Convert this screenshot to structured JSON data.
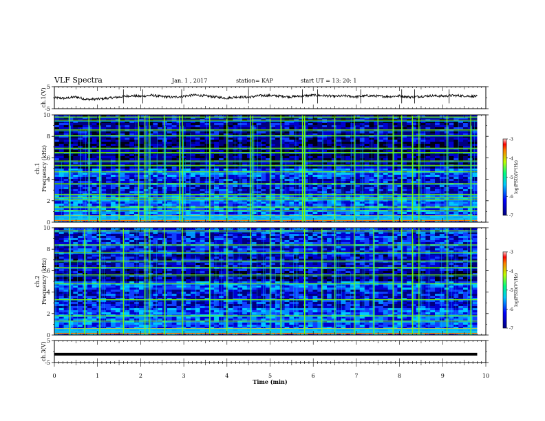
{
  "header": {
    "title": "VLF Spectra",
    "date": "Jan. 1 , 2017",
    "station": "station= KAP",
    "start": "start UT = 13: 20: 1"
  },
  "colors": {
    "spec_low": "#00007f",
    "spec_mid": "#00c8ff",
    "spec_high": "#7fff00",
    "spec_peak": "#ff0000",
    "trace": "#000000"
  },
  "chart_data": [
    {
      "type": "line",
      "panel": "ch1-waveform",
      "ylabel": "ch.1(V)",
      "ylim": [
        -5,
        5
      ],
      "yticks": [
        "5",
        "-5"
      ],
      "x": [
        0,
        0.25,
        0.5,
        0.75,
        1,
        1.25,
        1.5,
        1.75,
        2,
        2.25,
        2.5,
        2.75,
        3,
        3.25,
        3.5,
        3.75,
        4,
        4.25,
        4.5,
        4.75,
        5,
        5.25,
        5.5,
        5.75,
        6,
        6.25,
        6.5,
        6.75,
        7,
        7.25,
        7.5,
        7.75,
        8,
        8.25,
        8.5,
        8.75,
        9,
        9.25,
        9.5,
        9.8
      ],
      "values": [
        0,
        -0.3,
        0.4,
        -0.8,
        -0.6,
        -0.2,
        0.3,
        0.9,
        0.6,
        1.1,
        0.5,
        0.2,
        0.7,
        1.2,
        0.8,
        0.3,
        -0.2,
        0.4,
        0.2,
        0.9,
        1.0,
        0.7,
        0.4,
        0.8,
        1.1,
        0.9,
        0.6,
        0.8,
        0.4,
        0.9,
        0.7,
        0.5,
        0.8,
        0.3,
        0.6,
        0.9,
        0.7,
        1.0,
        0.8,
        0.6
      ],
      "spike_x": [
        1.6,
        2.05,
        2.95,
        4.5,
        5.75,
        6.1,
        7.1,
        8.05,
        8.35,
        9.15
      ]
    },
    {
      "type": "heatmap",
      "panel": "ch1-spectrogram",
      "ylabel": "ch.1 Frequency (kHz)",
      "ylim": [
        0,
        10
      ],
      "yticks": [
        "0",
        "2",
        "4",
        "6",
        "8",
        "10"
      ],
      "colorbar": {
        "label": "log(PSD)(V²/Hz)",
        "range": [
          -7,
          -3
        ],
        "ticks": [
          "-3",
          "-4",
          "-5",
          "-6",
          "-7"
        ]
      },
      "narrowband_khz": [
        0.3,
        0.6,
        1.1,
        1.4,
        2.1,
        2.3,
        2.6,
        3.6,
        4.7,
        5.3,
        5.7,
        6.5,
        6.9,
        8.1,
        8.6,
        9.5,
        9.8
      ],
      "broadband_min": [
        0.35,
        0.8,
        1.05,
        1.5,
        1.95,
        2.1,
        2.2,
        2.55,
        2.9,
        2.97,
        3.6,
        4.0,
        4.55,
        4.6,
        5.0,
        5.25,
        5.75,
        5.8,
        6.5,
        6.95,
        7.5,
        7.85,
        8.05,
        8.3,
        8.45,
        9.1,
        9.65
      ]
    },
    {
      "type": "heatmap",
      "panel": "ch2-spectrogram",
      "ylabel": "ch.2 Frequency (kHz)",
      "ylim": [
        0,
        10
      ],
      "yticks": [
        "0",
        "2",
        "4",
        "6",
        "8",
        "10"
      ],
      "colorbar": {
        "label": "log(PSD)(V²/Hz)",
        "range": [
          -7,
          -3
        ],
        "ticks": [
          "-3",
          "-4",
          "-5",
          "-6",
          "-7"
        ]
      },
      "narrowband_khz": [
        0.3,
        0.6,
        1.3,
        1.8,
        3.3,
        4.8,
        5.6,
        6.3,
        6.9,
        7.7,
        8.4,
        9.7
      ],
      "broadband_min": [
        0.35,
        0.7,
        1.05,
        1.6,
        2.1,
        2.2,
        2.55,
        2.97,
        3.6,
        4.0,
        4.55,
        5.0,
        5.25,
        5.8,
        6.2,
        6.5,
        6.95,
        7.4,
        7.85,
        8.05,
        8.3,
        8.45,
        9.1,
        9.65
      ]
    },
    {
      "type": "line",
      "panel": "ch3-waveform",
      "ylabel": "ch.3(V)",
      "xlabel": "Time (min)",
      "ylim": [
        -5,
        5
      ],
      "yticks": [
        "5",
        "-5"
      ],
      "xlim": [
        0,
        10
      ],
      "xticks": [
        "0",
        "1",
        "2",
        "3",
        "4",
        "5",
        "6",
        "7",
        "8",
        "9",
        "10"
      ],
      "x": [
        0,
        9.8
      ],
      "values": [
        -1.2,
        -1.2
      ]
    }
  ]
}
